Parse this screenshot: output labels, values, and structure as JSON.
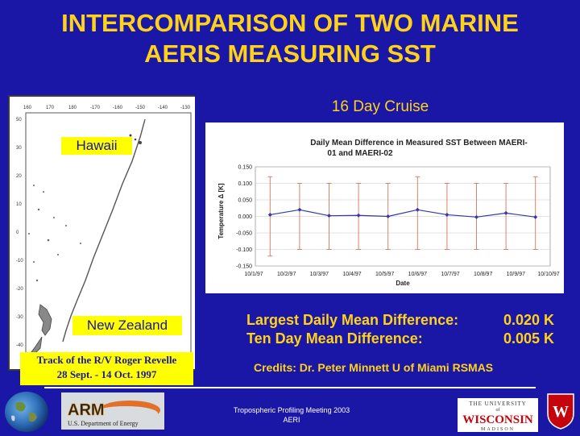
{
  "title": {
    "line1": "INTERCOMPARISON OF TWO MARINE",
    "line2": "AERIS MEASURING SST"
  },
  "map": {
    "top_ticks": [
      "160",
      "170",
      "180",
      "-170",
      "-160",
      "-150",
      "-140",
      "-130"
    ],
    "side_ticks": [
      "50",
      "30",
      "20",
      "10",
      "0",
      "-10",
      "-20",
      "-30",
      "-40"
    ],
    "hawaii_label": "Hawaii",
    "nz_label": "New Zealand"
  },
  "cruise_label": "16 Day Cruise",
  "chart_data": {
    "type": "line",
    "title": "Daily Mean Difference in Measured SST Between MAERI-01 and MAERI-02",
    "title_line1": "Daily Mean Difference in Measured SST Between MAERI-",
    "title_line2": "01 and MAERI-02",
    "xlabel": "Date",
    "ylabel": "Temperature Δ [K]",
    "ylim": [
      -0.15,
      0.15
    ],
    "yticks": [
      "0.150",
      "0.100",
      "0.050",
      "0.000",
      "-0.050",
      "-0.100",
      "-0.150"
    ],
    "categories": [
      "10/1/97",
      "10/2/97",
      "10/3/97",
      "10/4/97",
      "10/5/97",
      "10/6/97",
      "10/7/97",
      "10/8/97",
      "10/9/97",
      "10/10/97"
    ],
    "values": [
      0.005,
      0.02,
      0.002,
      0.003,
      0.0,
      0.02,
      0.005,
      -0.002,
      0.01,
      -0.002
    ],
    "error_high": [
      0.12,
      0.1,
      0.1,
      0.1,
      0.1,
      0.12,
      0.1,
      0.1,
      0.1,
      0.12
    ],
    "error_low": [
      -0.12,
      -0.1,
      -0.1,
      -0.1,
      -0.1,
      -0.1,
      -0.1,
      -0.1,
      -0.1,
      -0.1
    ],
    "line_color": "#2f3aa8",
    "error_color": "#d9826a",
    "grid": true
  },
  "stats": {
    "largest_label": "Largest Daily Mean Difference:",
    "largest_value": "0.020 K",
    "ten_day_label": "Ten Day Mean Difference:",
    "ten_day_value": "0.005 K"
  },
  "track": {
    "line1": "Track of the R/V Roger Revelle",
    "line2": "28 Sept. - 14 Oct. 1997"
  },
  "credits": "Credits: Dr. Peter Minnett U of Miami RSMAS",
  "footer": {
    "line1": "Tropospheric Profiling Meeting 2003",
    "line2": "AERI"
  },
  "logos": {
    "arm_text": "ARM",
    "arm_caption": "U.S. Department of Energy",
    "wisc_top": "THE UNIVERSITY",
    "wisc_of": "of",
    "wisc_name": "WISCONSIN",
    "wisc_city": "MADISON",
    "crest_letter": "W"
  },
  "colors": {
    "background": "#1a17a6",
    "title": "#ffd21a",
    "label_box": "#ffff00",
    "wisc_red": "#c5050c"
  }
}
